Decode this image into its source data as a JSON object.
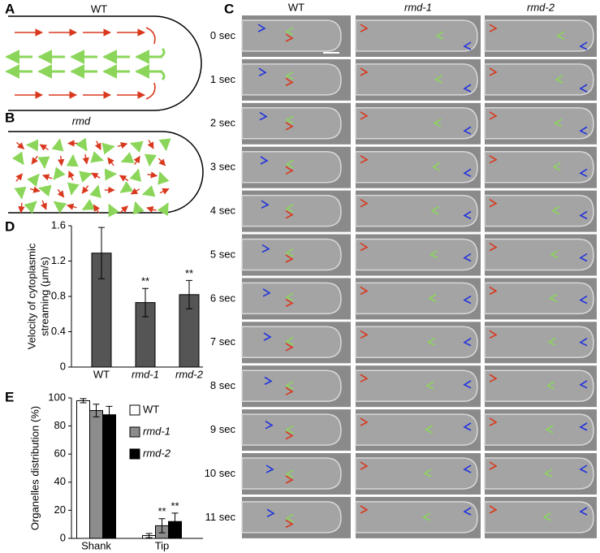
{
  "panels": {
    "a": {
      "label": "A",
      "title": "WT"
    },
    "b": {
      "label": "B",
      "title": "rmd"
    },
    "c": {
      "label": "C",
      "columns": [
        "WT",
        "rmd-1",
        "rmd-2"
      ],
      "rows": [
        "0 sec",
        "1 sec",
        "2 sec",
        "3 sec",
        "4 sec",
        "5 sec",
        "6 sec",
        "7 sec",
        "8 sec",
        "9 sec",
        "10 sec",
        "11 sec"
      ]
    }
  },
  "chart_data": [
    {
      "type": "bar",
      "label": "D",
      "ylabel": [
        "Velocity of cytoplasmic",
        "streaming (μm/s)"
      ],
      "categories": [
        "WT",
        "rmd-1",
        "rmd-2"
      ],
      "values": [
        1.29,
        0.73,
        0.82
      ],
      "errors": [
        0.29,
        0.16,
        0.16
      ],
      "color": "#555555",
      "ylim": [
        0,
        1.6
      ],
      "yticks": [
        0,
        0.4,
        0.8,
        1.2,
        1.6
      ],
      "annotations": [
        "**",
        "**"
      ]
    },
    {
      "type": "grouped_bar",
      "label": "E",
      "ylabel": "Organelles distribution (%)",
      "categories": [
        "Shank",
        "Tip"
      ],
      "series": [
        {
          "name": "WT",
          "color": "#ffffff",
          "values": [
            98,
            2
          ],
          "errors": [
            1.5,
            1.5
          ]
        },
        {
          "name": "rmd-1",
          "color": "#8c8c8c",
          "values": [
            91,
            9
          ],
          "errors": [
            4.5,
            5
          ]
        },
        {
          "name": "rmd-2",
          "color": "#000000",
          "values": [
            88,
            12
          ],
          "errors": [
            6,
            6
          ]
        }
      ],
      "ylim": [
        0,
        100
      ],
      "yticks": [
        0,
        20,
        40,
        60,
        80,
        100
      ],
      "annotations": [
        "**",
        "**"
      ]
    }
  ]
}
